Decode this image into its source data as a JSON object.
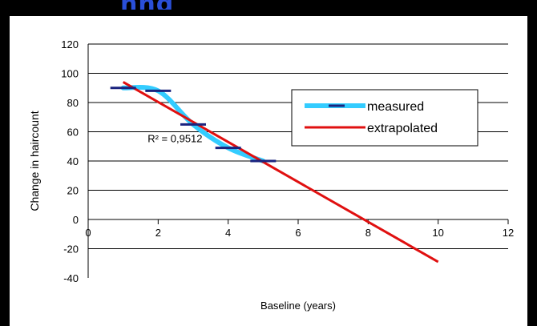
{
  "header": {
    "partial_text": "nng"
  },
  "chart_data": {
    "type": "line",
    "title": "",
    "xlabel": "Baseline (years)",
    "ylabel": "Change in haircount",
    "xlim": [
      0,
      12
    ],
    "ylim": [
      -40,
      120
    ],
    "x_ticks": [
      0,
      2,
      4,
      6,
      8,
      10,
      12
    ],
    "y_ticks": [
      120,
      100,
      80,
      60,
      40,
      20,
      0,
      -20,
      -40
    ],
    "grid": true,
    "legend_position": "right",
    "annotation": {
      "text": "R² = 0,9512",
      "x": 1.7,
      "y": 53
    },
    "series": [
      {
        "name": "measured",
        "color": "#33ccff",
        "marker": "dash",
        "marker_color": "#1a237e",
        "x": [
          1,
          2,
          3,
          4,
          5
        ],
        "y": [
          90,
          88,
          65,
          49,
          40
        ]
      },
      {
        "name": "extrapolated",
        "color": "#e01010",
        "x": [
          1,
          10
        ],
        "y": [
          94,
          -29
        ]
      }
    ]
  }
}
